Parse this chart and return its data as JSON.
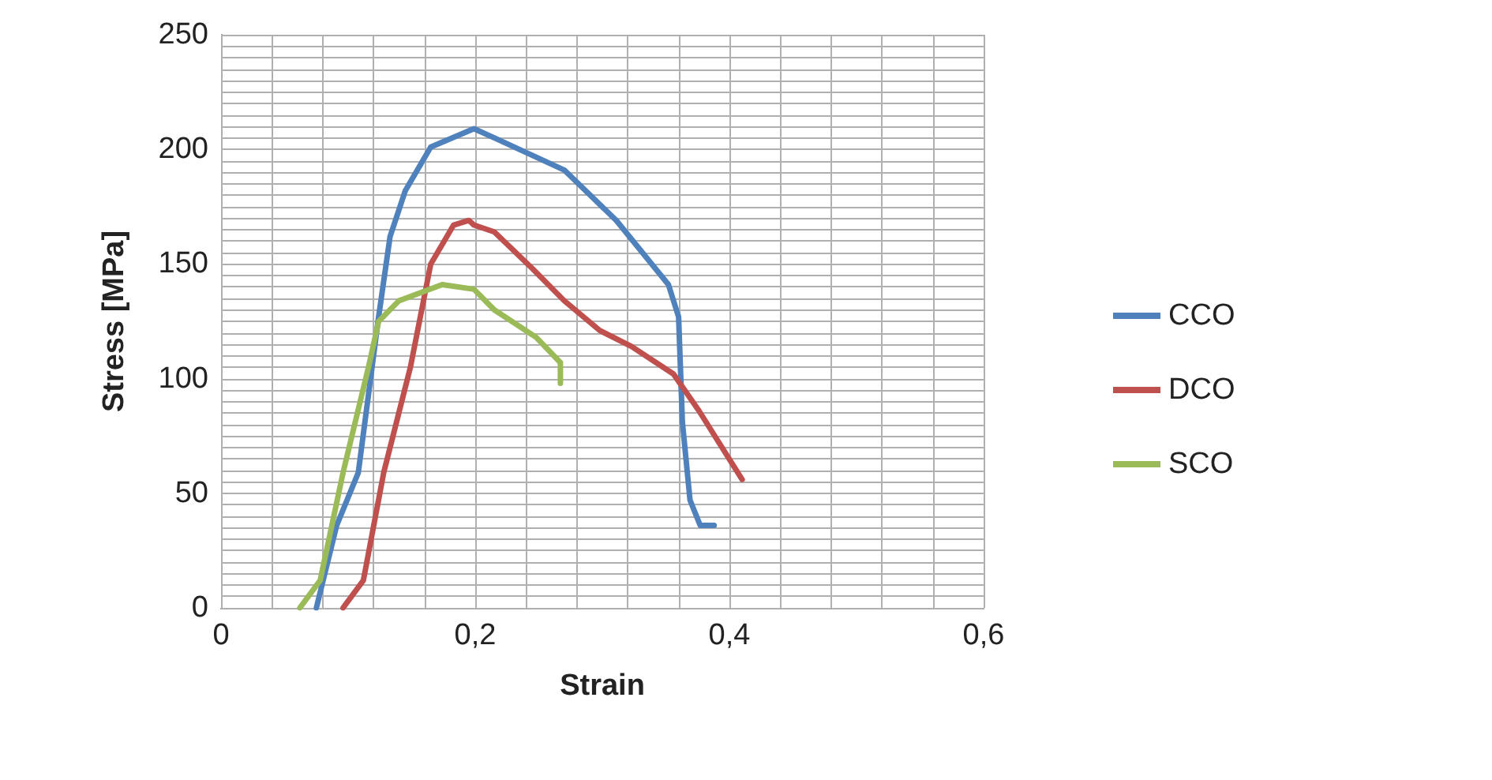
{
  "chart_data": {
    "type": "line",
    "xlabel": "Strain",
    "ylabel": "Stress [MPa]",
    "xlim": [
      0,
      0.6
    ],
    "xticks": [
      {
        "value": 0,
        "label": "0"
      },
      {
        "value": 0.04,
        "label": null
      },
      {
        "value": 0.08,
        "label": null
      },
      {
        "value": 0.12,
        "label": null
      },
      {
        "value": 0.16,
        "label": null
      },
      {
        "value": 0.2,
        "label": "0,2"
      },
      {
        "value": 0.24,
        "label": null
      },
      {
        "value": 0.28,
        "label": null
      },
      {
        "value": 0.32,
        "label": null
      },
      {
        "value": 0.36,
        "label": null
      },
      {
        "value": 0.4,
        "label": "0,4"
      },
      {
        "value": 0.44,
        "label": null
      },
      {
        "value": 0.48,
        "label": null
      },
      {
        "value": 0.52,
        "label": null
      },
      {
        "value": 0.56,
        "label": null
      },
      {
        "value": 0.6,
        "label": "0,6"
      }
    ],
    "ylim": [
      0,
      250
    ],
    "yticks": [
      0,
      {
        "value": 5,
        "label": null
      },
      {
        "value": 10,
        "label": null
      },
      {
        "value": 15,
        "label": null
      },
      {
        "value": 20,
        "label": null
      },
      {
        "value": 25,
        "label": null
      },
      {
        "value": 30,
        "label": null
      },
      {
        "value": 35,
        "label": null
      },
      {
        "value": 40,
        "label": null
      },
      {
        "value": 45,
        "label": null
      },
      50,
      {
        "value": 55,
        "label": null
      },
      {
        "value": 60,
        "label": null
      },
      {
        "value": 65,
        "label": null
      },
      {
        "value": 70,
        "label": null
      },
      {
        "value": 75,
        "label": null
      },
      {
        "value": 80,
        "label": null
      },
      {
        "value": 85,
        "label": null
      },
      {
        "value": 90,
        "label": null
      },
      {
        "value": 95,
        "label": null
      },
      100,
      {
        "value": 105,
        "label": null
      },
      {
        "value": 110,
        "label": null
      },
      {
        "value": 115,
        "label": null
      },
      {
        "value": 120,
        "label": null
      },
      {
        "value": 125,
        "label": null
      },
      {
        "value": 130,
        "label": null
      },
      {
        "value": 135,
        "label": null
      },
      {
        "value": 140,
        "label": null
      },
      {
        "value": 145,
        "label": null
      },
      150,
      {
        "value": 155,
        "label": null
      },
      {
        "value": 160,
        "label": null
      },
      {
        "value": 165,
        "label": null
      },
      {
        "value": 170,
        "label": null
      },
      {
        "value": 175,
        "label": null
      },
      {
        "value": 180,
        "label": null
      },
      {
        "value": 185,
        "label": null
      },
      {
        "value": 190,
        "label": null
      },
      {
        "value": 195,
        "label": null
      },
      200,
      {
        "value": 205,
        "label": null
      },
      {
        "value": 210,
        "label": null
      },
      {
        "value": 215,
        "label": null
      },
      {
        "value": 220,
        "label": null
      },
      {
        "value": 225,
        "label": null
      },
      {
        "value": 230,
        "label": null
      },
      {
        "value": 235,
        "label": null
      },
      {
        "value": 240,
        "label": null
      },
      {
        "value": 245,
        "label": null
      },
      250
    ],
    "grid": true,
    "legend": "right",
    "marker": "none",
    "line_style": "solid",
    "series": [
      {
        "name": "CCO",
        "color": "#4f81bd",
        "x": [
          0.075,
          0.091,
          0.108,
          0.124,
          0.133,
          0.145,
          0.165,
          0.199,
          0.215,
          0.27,
          0.311,
          0.352,
          0.36,
          0.363,
          0.369,
          0.377,
          0.388
        ],
        "values": [
          0,
          36,
          59,
          127,
          162,
          182,
          201,
          209,
          205,
          191,
          169,
          141,
          127,
          81,
          47,
          36,
          36
        ]
      },
      {
        "name": "DCO",
        "color": "#c0504d",
        "x": [
          0.096,
          0.112,
          0.128,
          0.149,
          0.165,
          0.183,
          0.195,
          0.199,
          0.215,
          0.245,
          0.27,
          0.298,
          0.323,
          0.356,
          0.376,
          0.41
        ],
        "values": [
          0,
          12,
          59,
          105,
          150,
          167,
          169,
          167,
          164,
          148,
          134,
          121,
          114,
          102,
          86,
          56
        ]
      },
      {
        "name": "SCO",
        "color": "#9bbb59",
        "x": [
          0.062,
          0.078,
          0.096,
          0.116,
          0.124,
          0.14,
          0.174,
          0.199,
          0.215,
          0.248,
          0.267,
          0.267
        ],
        "values": [
          0,
          12,
          59,
          105,
          125,
          134,
          141,
          139,
          130,
          118,
          107,
          98
        ]
      }
    ]
  }
}
